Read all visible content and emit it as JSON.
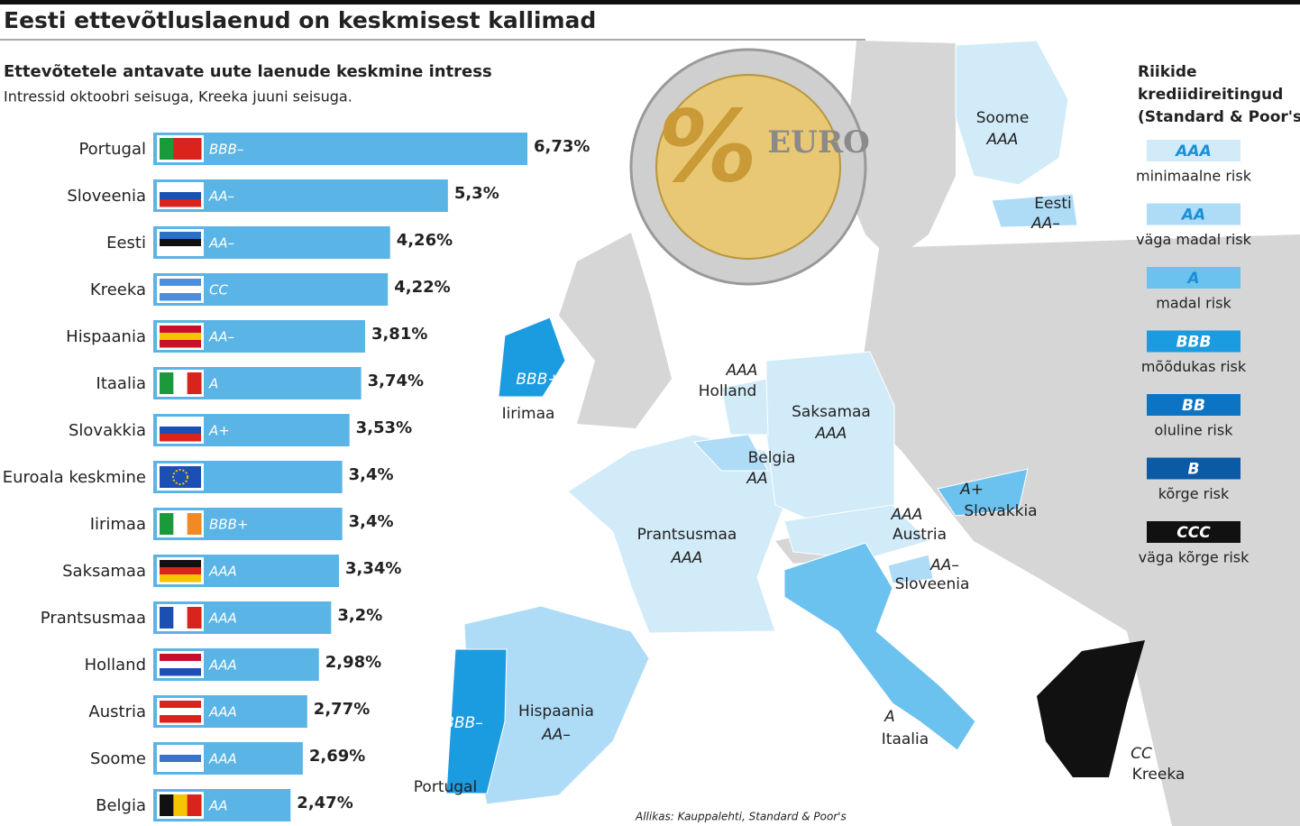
{
  "chart_data": {
    "type": "hbar",
    "title": "Eesti ettevõtluslaenud on keskmisest kallimad",
    "subtitle": "Ettevõtetele antavate uute laenude keskmine intress",
    "note": "Intressid oktoobri seisuga, Kreeka juuni seisuga.",
    "categories": [
      "Portugal",
      "Sloveenia",
      "Eesti",
      "Kreeka",
      "Hispaania",
      "Itaalia",
      "Slovakkia",
      "Euroala keskmine",
      "Iirimaa",
      "Saksamaa",
      "Prantsusmaa",
      "Holland",
      "Austria",
      "Soome",
      "Belgia"
    ],
    "values": [
      6.73,
      5.3,
      4.26,
      4.22,
      3.81,
      3.74,
      3.53,
      3.4,
      3.4,
      3.34,
      3.2,
      2.98,
      2.77,
      2.69,
      2.47
    ],
    "value_labels": [
      "6,73%",
      "5,3%",
      "4,26%",
      "4,22%",
      "3,81%",
      "3,74%",
      "3,53%",
      "3,4%",
      "3,4%",
      "3,34%",
      "3,2%",
      "2,98%",
      "2,77%",
      "2,69%",
      "2,47%"
    ],
    "ratings": [
      "BBB–",
      "AA–",
      "AA–",
      "CC",
      "AA–",
      "A",
      "A+",
      null,
      "BBB+",
      "AAA",
      "AAA",
      "AAA",
      "AAA",
      "AAA",
      "AA"
    ],
    "color": "#5ab4e5"
  },
  "coin": {
    "symbol": "%",
    "text": "EURO"
  },
  "map": {
    "regions": [
      {
        "name": "Soome",
        "rating": "AAA"
      },
      {
        "name": "Eesti",
        "rating": "AA–"
      },
      {
        "name": "Iirimaa",
        "rating": "BBB+"
      },
      {
        "name": "Holland",
        "rating": "AAA"
      },
      {
        "name": "Saksamaa",
        "rating": "AAA"
      },
      {
        "name": "Belgia",
        "rating": "AA"
      },
      {
        "name": "Slovakkia",
        "rating": "A+"
      },
      {
        "name": "Austria",
        "rating": "AAA"
      },
      {
        "name": "Prantsusmaa",
        "rating": "AAA"
      },
      {
        "name": "Sloveenia",
        "rating": "AA–"
      },
      {
        "name": "Hispaania",
        "rating": "AA–"
      },
      {
        "name": "Portugal",
        "rating": "BBB–"
      },
      {
        "name": "Itaalia",
        "rating": "A"
      },
      {
        "name": "Kreeka",
        "rating": "CC"
      }
    ]
  },
  "legend": {
    "title_lines": [
      "Riikide",
      "krediidireitingud",
      "(Standard & Poor's)"
    ],
    "items": [
      {
        "rating": "AAA",
        "label": "minimaalne risk",
        "color": "#d2ebf9"
      },
      {
        "rating": "AA",
        "label": "väga madal risk",
        "color": "#aedcf6"
      },
      {
        "rating": "A",
        "label": "madal risk",
        "color": "#6cc2ef"
      },
      {
        "rating": "BBB",
        "label": "mõõdukas risk",
        "color": "#1b9be0"
      },
      {
        "rating": "BB",
        "label": "oluline risk",
        "color": "#0d74c4"
      },
      {
        "rating": "B",
        "label": "kõrge risk",
        "color": "#0a5aa6"
      },
      {
        "rating": "CCC",
        "label": "väga kõrge risk",
        "color": "#111111"
      }
    ]
  },
  "source": "Allikas: Kauppalehti, Standard & Poor's"
}
